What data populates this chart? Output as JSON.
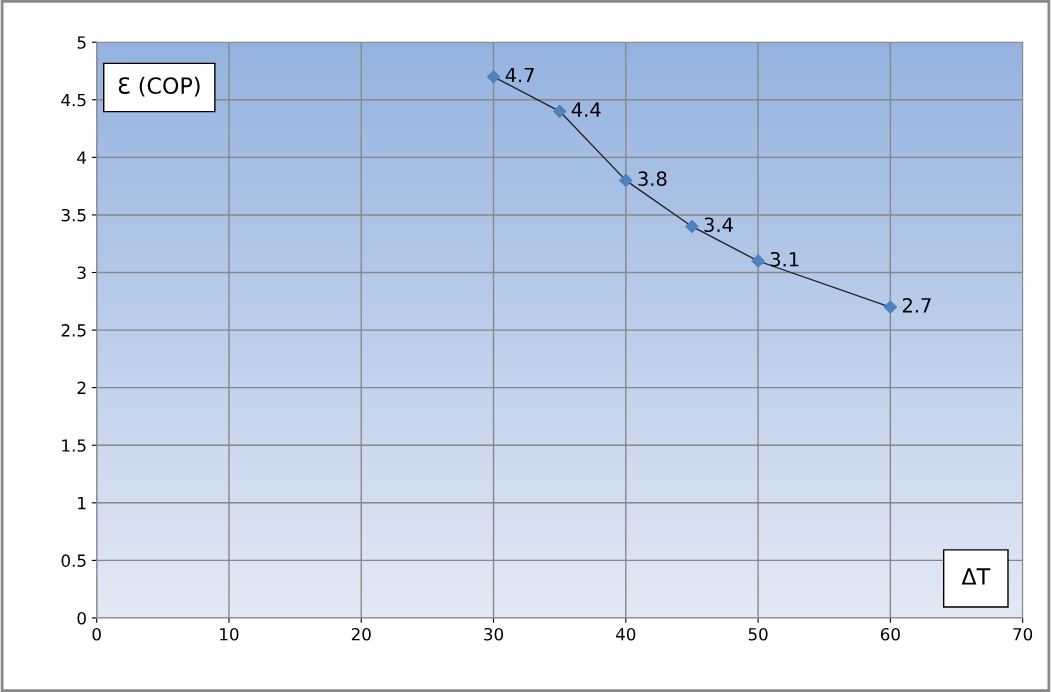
{
  "chart_data": {
    "type": "line",
    "xlabel": "ΔT",
    "ylabel": "Ɛ (COP)",
    "x": [
      30,
      35,
      40,
      45,
      50,
      60
    ],
    "series": [
      {
        "color": "#4f81bd",
        "values": [
          4.7,
          4.4,
          3.8,
          3.4,
          3.1,
          2.7
        ]
      }
    ],
    "xlim": [
      0,
      70
    ],
    "xticks": [
      0,
      10,
      20,
      30,
      40,
      50,
      60,
      70
    ],
    "ylim": [
      0,
      5
    ],
    "yticks": [
      0,
      0.5,
      1,
      1.5,
      2,
      2.5,
      3,
      3.5,
      4,
      4.5,
      5
    ],
    "grid": true,
    "marker": "diamond",
    "line_style": "solid",
    "data_labels": true
  }
}
